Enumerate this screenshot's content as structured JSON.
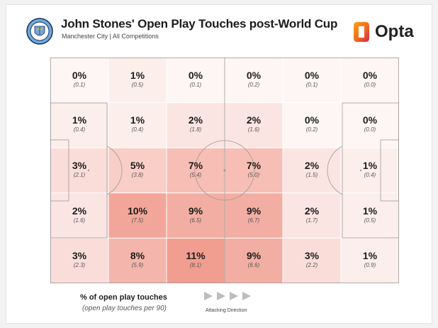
{
  "header": {
    "title": "John Stones' Open Play Touches post-World Cup",
    "subtitle": "Manchester City | All Competitions",
    "brand": "Opta"
  },
  "legend": {
    "title": "% of open play touches",
    "subtitle": "(open play touches per 90)",
    "direction_label": "Attacking Direction"
  },
  "colors": {
    "heat_base": "#e8604a",
    "line": "#9a9a9a",
    "brand_orange": "#f2701d",
    "brand_red": "#d8264b",
    "arrow": "#bdbdbd"
  },
  "chart_data": {
    "type": "heatmap",
    "title": "John Stones' Open Play Touches post-World Cup",
    "subtitle": "Manchester City | All Competitions",
    "columns": 6,
    "rows": 5,
    "cells": [
      [
        {
          "pct": "0%",
          "per90": "(0.1)"
        },
        {
          "pct": "1%",
          "per90": "(0.5)"
        },
        {
          "pct": "0%",
          "per90": "(0.1)"
        },
        {
          "pct": "0%",
          "per90": "(0.2)"
        },
        {
          "pct": "0%",
          "per90": "(0.1)"
        },
        {
          "pct": "0%",
          "per90": "(0.0)"
        }
      ],
      [
        {
          "pct": "1%",
          "per90": "(0.4)"
        },
        {
          "pct": "1%",
          "per90": "(0.4)"
        },
        {
          "pct": "2%",
          "per90": "(1.8)"
        },
        {
          "pct": "2%",
          "per90": "(1.6)"
        },
        {
          "pct": "0%",
          "per90": "(0.2)"
        },
        {
          "pct": "0%",
          "per90": "(0.0)"
        }
      ],
      [
        {
          "pct": "3%",
          "per90": "(2.1)"
        },
        {
          "pct": "5%",
          "per90": "(3.8)"
        },
        {
          "pct": "7%",
          "per90": "(5.4)"
        },
        {
          "pct": "7%",
          "per90": "(5.0)"
        },
        {
          "pct": "2%",
          "per90": "(1.5)"
        },
        {
          "pct": "1%",
          "per90": "(0.4)"
        }
      ],
      [
        {
          "pct": "2%",
          "per90": "(1.6)"
        },
        {
          "pct": "10%",
          "per90": "(7.5)"
        },
        {
          "pct": "9%",
          "per90": "(6.5)"
        },
        {
          "pct": "9%",
          "per90": "(6.7)"
        },
        {
          "pct": "2%",
          "per90": "(1.7)"
        },
        {
          "pct": "1%",
          "per90": "(0.5)"
        }
      ],
      [
        {
          "pct": "3%",
          "per90": "(2.3)"
        },
        {
          "pct": "8%",
          "per90": "(5.9)"
        },
        {
          "pct": "11%",
          "per90": "(8.1)"
        },
        {
          "pct": "9%",
          "per90": "(6.6)"
        },
        {
          "pct": "3%",
          "per90": "(2.2)"
        },
        {
          "pct": "1%",
          "per90": "(0.9)"
        }
      ]
    ],
    "max_pct": 11
  }
}
